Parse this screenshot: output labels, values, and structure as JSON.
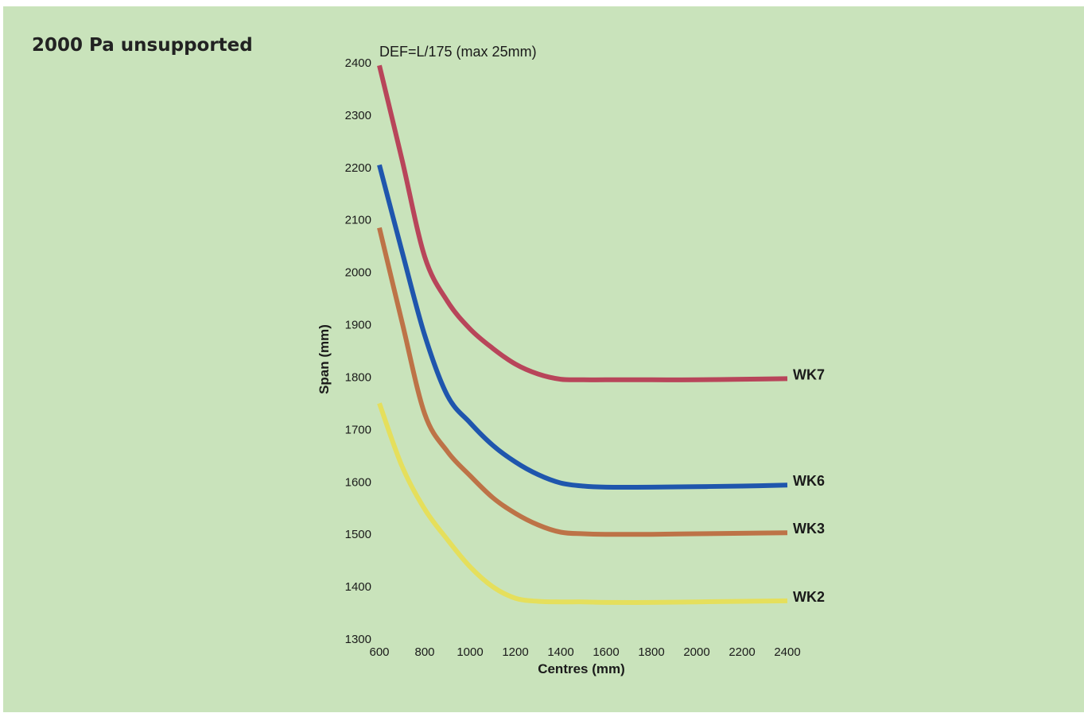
{
  "page": {
    "title": "2000 Pa unsupported"
  },
  "chart_data": {
    "type": "line",
    "title": "2000 Pa unsupported",
    "annotation": "DEF=L/175 (max 25mm)",
    "xlabel": "Centres (mm)",
    "ylabel": "Span (mm)",
    "xlim": [
      600,
      2400
    ],
    "ylim": [
      1300,
      2400
    ],
    "xticks": [
      600,
      800,
      1000,
      1200,
      1400,
      1600,
      1800,
      2000,
      2200,
      2400
    ],
    "yticks": [
      1300,
      1400,
      1500,
      1600,
      1700,
      1800,
      1900,
      2000,
      2100,
      2200,
      2300,
      2400
    ],
    "grid": false,
    "legend": "inline labels at right end of lines",
    "series": [
      {
        "name": "WK7",
        "color": "#b8455a",
        "x": [
          600,
          700,
          800,
          900,
          1000,
          1100,
          1200,
          1300,
          1400,
          1500,
          1600,
          1800,
          2000,
          2200,
          2400
        ],
        "y": [
          2395,
          2215,
          2030,
          1945,
          1892,
          1855,
          1825,
          1806,
          1796,
          1795,
          1795,
          1795,
          1795,
          1796,
          1797
        ]
      },
      {
        "name": "WK6",
        "color": "#1f56ad",
        "x": [
          600,
          700,
          800,
          900,
          1000,
          1100,
          1200,
          1300,
          1400,
          1500,
          1600,
          1800,
          2000,
          2200,
          2400
        ],
        "y": [
          2205,
          2040,
          1880,
          1765,
          1713,
          1670,
          1638,
          1614,
          1598,
          1592,
          1590,
          1590,
          1591,
          1592,
          1594
        ]
      },
      {
        "name": "WK3",
        "color": "#bd7347",
        "x": [
          600,
          700,
          800,
          900,
          1000,
          1100,
          1200,
          1300,
          1400,
          1500,
          1600,
          1800,
          2000,
          2200,
          2400
        ],
        "y": [
          2085,
          1905,
          1730,
          1658,
          1612,
          1570,
          1540,
          1518,
          1504,
          1501,
          1500,
          1500,
          1501,
          1502,
          1503
        ]
      },
      {
        "name": "WK2",
        "color": "#e5df5c",
        "x": [
          600,
          700,
          800,
          900,
          1000,
          1100,
          1200,
          1300,
          1400,
          1500,
          1600,
          1800,
          2000,
          2200,
          2400
        ],
        "y": [
          1750,
          1630,
          1548,
          1490,
          1438,
          1400,
          1378,
          1372,
          1371,
          1371,
          1370,
          1370,
          1371,
          1372,
          1373
        ]
      }
    ]
  }
}
